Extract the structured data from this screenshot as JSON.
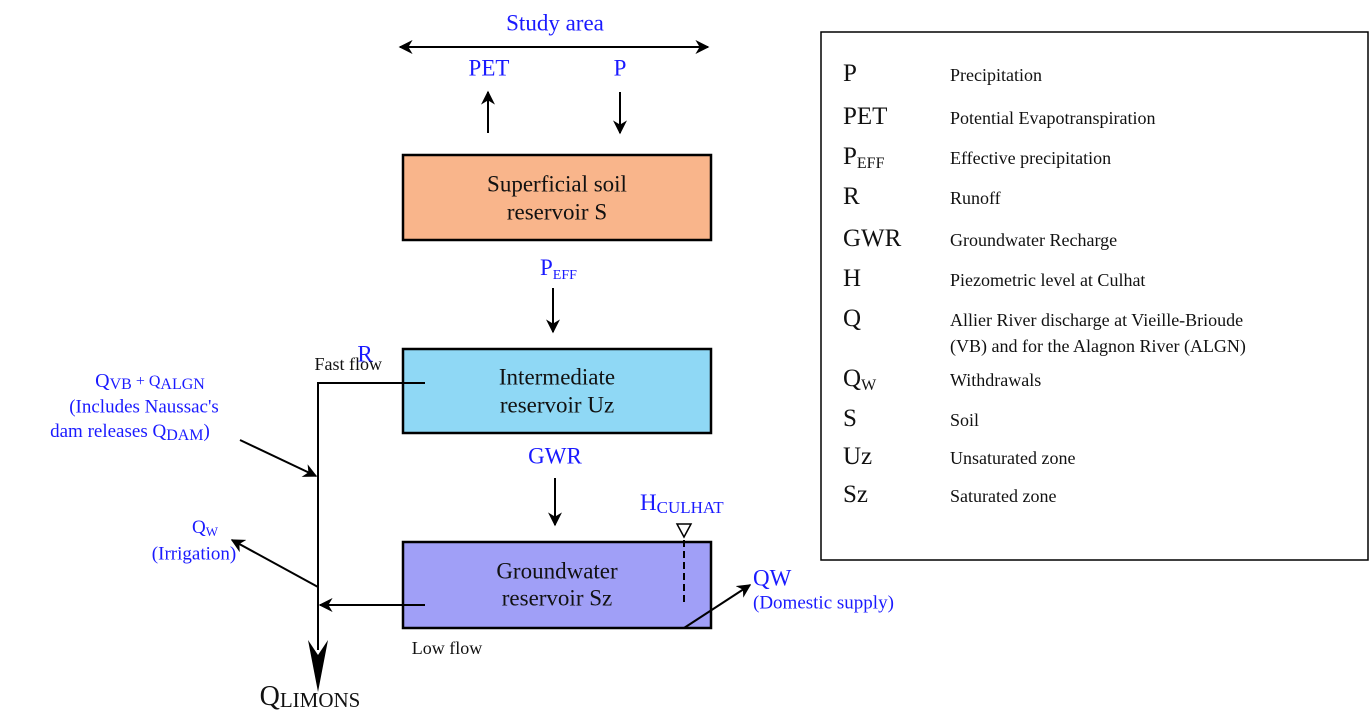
{
  "header": {
    "title": "Study area"
  },
  "fluxes": {
    "pet": "PET",
    "p": "P",
    "peff": {
      "main": "P",
      "sub": "EFF"
    },
    "r": "R",
    "fast_flow": "Fast flow",
    "gwr": "GWR",
    "h": {
      "main": "H",
      "sub": "CULHAT"
    },
    "low_flow": "Low flow",
    "qw_domestic": {
      "main": "QW",
      "note": "(Domestic supply)"
    },
    "qw_irrigation": {
      "main": "Q",
      "sub": "W",
      "note": "(Irrigation)"
    },
    "q_inflow": {
      "q1": "Q",
      "sub1": "VB",
      "plus": " + Q",
      "sub2": "ALGN",
      "line2": "(Includes Naussac's",
      "line3": "dam releases Q",
      "sub3": "DAM",
      "close": ")"
    },
    "q_limons": {
      "main": "Q",
      "sub": "LIMONS"
    }
  },
  "nodes": [
    {
      "lines": [
        "Superficial soil",
        "reservoir S"
      ]
    },
    {
      "lines": [
        "Intermediate",
        "reservoir Uz"
      ]
    },
    {
      "lines": [
        "Groundwater",
        "reservoir Sz"
      ]
    }
  ],
  "legend": [
    {
      "symbol": "P",
      "lines": [
        "Precipitation"
      ]
    },
    {
      "symbol": "PET",
      "lines": [
        "Potential Evapotranspiration"
      ]
    },
    {
      "symbol": "P",
      "sub": "EFF",
      "lines": [
        "Effective precipitation"
      ]
    },
    {
      "symbol": "R",
      "lines": [
        "Runoff"
      ]
    },
    {
      "symbol": "GWR",
      "lines": [
        "Groundwater Recharge"
      ]
    },
    {
      "symbol": "H",
      "lines": [
        "Piezometric level at Culhat"
      ]
    },
    {
      "symbol": "Q",
      "lines": [
        "Allier River discharge at Vieille-Brioude",
        "(VB) and for the Alagnon River (ALGN)"
      ]
    },
    {
      "symbol": "Q",
      "sub": "W",
      "lines": [
        "Withdrawals"
      ]
    },
    {
      "symbol": "S",
      "lines": [
        "Soil"
      ]
    },
    {
      "symbol": "Uz",
      "lines": [
        "Unsaturated zone"
      ]
    },
    {
      "symbol": "Sz",
      "lines": [
        "Saturated zone"
      ]
    }
  ]
}
